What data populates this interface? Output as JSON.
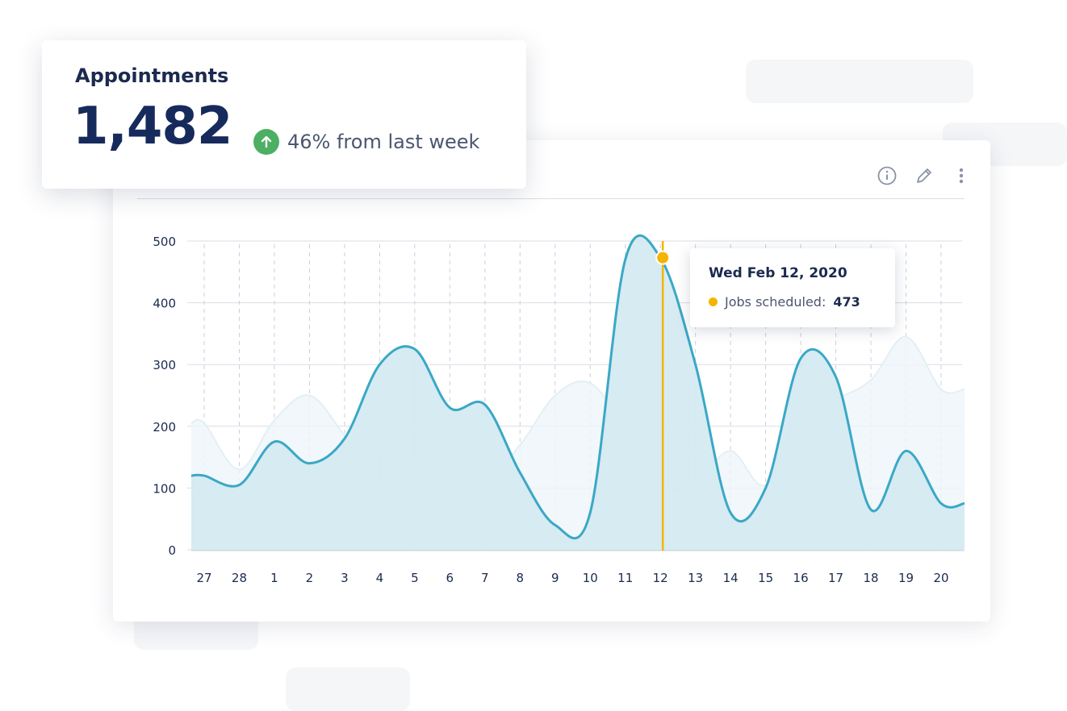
{
  "kpi": {
    "title": "Appointments",
    "value": "1,482",
    "change_text": "46% from last week",
    "change_icon": "arrow-up-icon"
  },
  "card": {
    "actions": [
      "info-icon",
      "edit-icon",
      "more-vertical-icon"
    ]
  },
  "tooltip": {
    "date": "Wed Feb 12, 2020",
    "label": "Jobs scheduled:",
    "value": "473"
  },
  "colors": {
    "primary_line": "#3aa8c6",
    "primary_fill": "#d4e9f1",
    "secondary_fill": "#eef6f9",
    "highlight": "#f5b400",
    "positive": "#4caf63"
  },
  "chart_data": {
    "type": "area",
    "categories": [
      "27",
      "28",
      "1",
      "2",
      "3",
      "4",
      "5",
      "6",
      "7",
      "8",
      "9",
      "10",
      "11",
      "12",
      "13",
      "14",
      "15",
      "16",
      "17",
      "18",
      "19",
      "20"
    ],
    "ylim": [
      0,
      500
    ],
    "y_ticks": [
      0,
      100,
      200,
      300,
      400,
      500
    ],
    "grid": true,
    "highlight_index": 13,
    "series": [
      {
        "values": [
          120,
          105,
          175,
          140,
          180,
          300,
          325,
          230,
          235,
          125,
          40,
          60,
          470,
          473,
          300,
          60,
          100,
          310,
          280,
          65,
          160,
          75
        ]
      },
      {
        "values": [
          205,
          130,
          210,
          250,
          185,
          110,
          155,
          215,
          120,
          170,
          250,
          270,
          195,
          105,
          110,
          160,
          105,
          230,
          245,
          275,
          345,
          260
        ]
      }
    ]
  }
}
